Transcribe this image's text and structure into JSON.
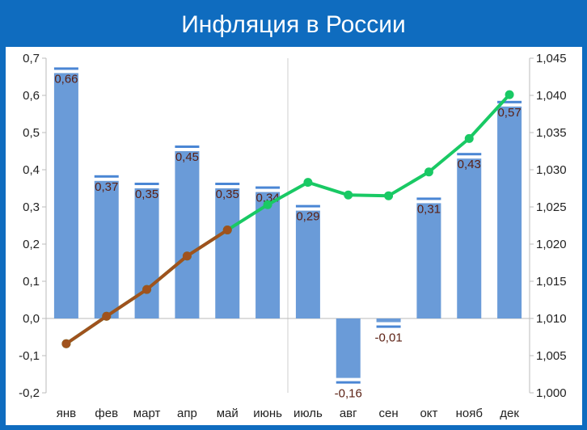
{
  "header": {
    "title": "Инфляция в России"
  },
  "colors": {
    "background": "#0f6cbf",
    "bar": "#6a9bd8",
    "bar_cap": "#4a86d4",
    "brown_line": "#a0521d",
    "green_line": "#19c964",
    "data_label": "#5a1f12"
  },
  "chart_data": {
    "type": "bar",
    "title": "Инфляция в России",
    "categories": [
      "янв",
      "фев",
      "март",
      "апр",
      "май",
      "июнь",
      "июль",
      "авг",
      "сен",
      "окт",
      "нояб",
      "дек"
    ],
    "series": [
      {
        "type": "bar",
        "axis": "left",
        "values": [
          0.66,
          0.37,
          0.35,
          0.45,
          0.35,
          0.34,
          0.29,
          -0.16,
          -0.01,
          0.31,
          0.43,
          0.57
        ],
        "labels": [
          "0,66",
          "0,37",
          "0,35",
          "0,45",
          "0,35",
          "0,34",
          "0,29",
          "-0,16",
          "-0,01",
          "0,31",
          "0,43",
          "0,57"
        ]
      },
      {
        "type": "line",
        "axis": "right",
        "color": "#a0521d",
        "values": [
          1.0066,
          1.0103,
          1.0139,
          1.0184,
          1.0219,
          null,
          null,
          null,
          null,
          null,
          null,
          null
        ]
      },
      {
        "type": "line",
        "axis": "right",
        "color": "#19c964",
        "values": [
          1.0066,
          1.0103,
          1.0139,
          1.0184,
          1.0219,
          1.0253,
          1.0283,
          1.0266,
          1.0265,
          1.0297,
          1.0342,
          1.0401
        ]
      }
    ],
    "y_left": {
      "range": [
        -0.2,
        0.7
      ],
      "ticks": [
        "-0,2",
        "-0,1",
        "0,0",
        "0,1",
        "0,2",
        "0,3",
        "0,4",
        "0,5",
        "0,6",
        "0,7"
      ]
    },
    "y_right": {
      "range": [
        1.0,
        1.045
      ],
      "ticks": [
        "1,000",
        "1,005",
        "1,010",
        "1,015",
        "1,020",
        "1,025",
        "1,030",
        "1,035",
        "1,040",
        "1,045"
      ]
    },
    "grid": false,
    "legend": "none"
  }
}
